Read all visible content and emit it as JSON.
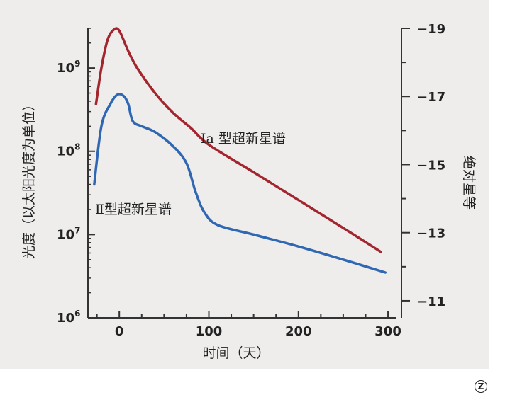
{
  "chart_data": {
    "type": "line",
    "xlabel": "时间（天）",
    "ylabel_left": "光度（以太阳光度为单位）",
    "ylabel_right": "绝对星等",
    "x_ticks": [
      0,
      100,
      200,
      300
    ],
    "xlim": [
      -35,
      315
    ],
    "y_left": {
      "scale": "log",
      "ticks": [
        {
          "value": 1000000,
          "base": "10",
          "exp": "6"
        },
        {
          "value": 10000000,
          "base": "10",
          "exp": "7"
        },
        {
          "value": 100000000,
          "base": "10",
          "exp": "8"
        },
        {
          "value": 1000000000,
          "base": "10",
          "exp": "9"
        }
      ],
      "range": [
        1000000,
        3000000000
      ]
    },
    "y_right": {
      "ticks": [
        "−19",
        "−17",
        "−15",
        "−13",
        "−11"
      ],
      "range": [
        -10.5,
        -19
      ]
    },
    "series": [
      {
        "name": "Ⅰa 型超新星谱",
        "color": "#a3262e",
        "points": [
          [
            -26,
            370000000.0
          ],
          [
            -20,
            1000000000.0
          ],
          [
            -13,
            2200000000.0
          ],
          [
            -6,
            2900000000.0
          ],
          [
            0,
            2800000000.0
          ],
          [
            10,
            1600000000.0
          ],
          [
            20,
            1000000000.0
          ],
          [
            40,
            500000000.0
          ],
          [
            60,
            290000000.0
          ],
          [
            80,
            190000000.0
          ],
          [
            100,
            120000000.0
          ],
          [
            150,
            56000000.0
          ],
          [
            200,
            26000000.0
          ],
          [
            250,
            12000000.0
          ],
          [
            292,
            6200000.0
          ]
        ]
      },
      {
        "name": "Ⅱ型超新星谱",
        "color": "#2f67b2",
        "points": [
          [
            -28,
            40000000.0
          ],
          [
            -20,
            200000000.0
          ],
          [
            -10,
            370000000.0
          ],
          [
            -2,
            480000000.0
          ],
          [
            5,
            460000000.0
          ],
          [
            10,
            370000000.0
          ],
          [
            15,
            230000000.0
          ],
          [
            25,
            200000000.0
          ],
          [
            40,
            170000000.0
          ],
          [
            60,
            115000000.0
          ],
          [
            75,
            72000000.0
          ],
          [
            85,
            33000000.0
          ],
          [
            95,
            18500000.0
          ],
          [
            110,
            13000000.0
          ],
          [
            150,
            10000000.0
          ],
          [
            200,
            7200000.0
          ],
          [
            250,
            5000000.0
          ],
          [
            297,
            3500000.0
          ]
        ]
      }
    ]
  }
}
